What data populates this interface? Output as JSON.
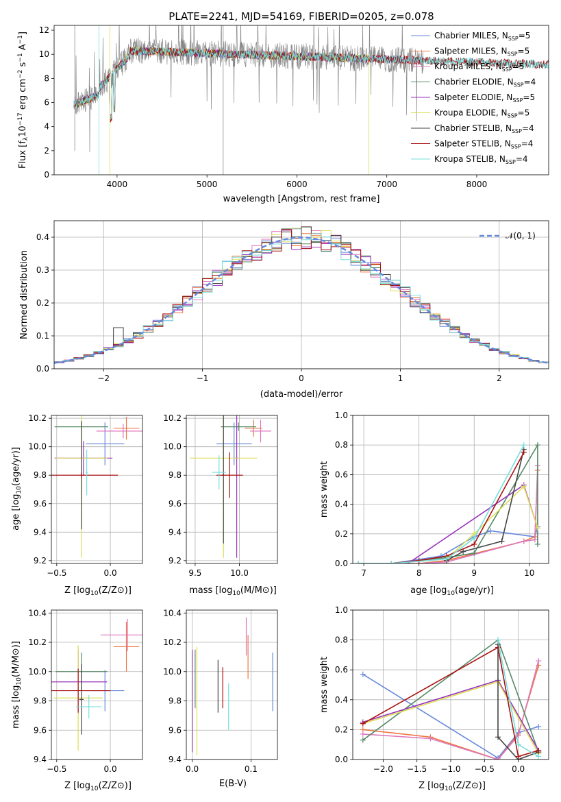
{
  "colors": [
    "#6688dd",
    "#ee7744",
    "#dd77bb",
    "#558866",
    "#9933bb",
    "#dddd55",
    "#444444",
    "#aa1111",
    "#77dddd",
    "#888888"
  ],
  "chart_data": [
    {
      "id": "spectrum",
      "type": "line",
      "title": "PLATE=2241, MJD=54169, FIBERID=0205, z=0.078",
      "xlabel": "wavelength [Angstrom, rest frame]",
      "ylabel": "Flux [fλ10⁻¹⁷ erg cm⁻² s⁻¹ A⁻¹]",
      "xlim": [
        3300,
        8800
      ],
      "ylim": [
        0,
        12.4
      ],
      "xticks": [
        4000,
        5000,
        6000,
        7000,
        8000
      ],
      "yticks": [
        0,
        2,
        4,
        6,
        8,
        10,
        12
      ],
      "grid": false,
      "legend_position": "right",
      "data_line": {
        "name": "data",
        "color": "#888888"
      },
      "series": [
        {
          "name": "Chabrier MILES, N_SSP=5",
          "label_main": "Chabrier MILES, N",
          "label_sub": "SSP",
          "label_end": "=5",
          "color": "#6688dd",
          "x_end": 7400
        },
        {
          "name": "Salpeter MILES, N_SSP=5",
          "label_main": "Salpeter MILES, N",
          "label_sub": "SSP",
          "label_end": "=5",
          "color": "#ee7744",
          "x_end": 7400
        },
        {
          "name": "Kroupa MILES, N_SSP=5",
          "label_main": "Kroupa MILES, N",
          "label_sub": "SSP",
          "label_end": "=5",
          "color": "#dd77bb",
          "x_end": 7400
        },
        {
          "name": "Chabrier ELODIE, N_SSP=4",
          "label_main": "Chabrier ELODIE, N",
          "label_sub": "SSP",
          "label_end": "=4",
          "color": "#558866",
          "x_end": 6800
        },
        {
          "name": "Salpeter ELODIE, N_SSP=5",
          "label_main": "Salpeter ELODIE, N",
          "label_sub": "SSP",
          "label_end": "=5",
          "color": "#9933bb",
          "x_end": 6800
        },
        {
          "name": "Kroupa ELODIE, N_SSP=5",
          "label_main": "Kroupa ELODIE, N",
          "label_sub": "SSP",
          "label_end": "=5",
          "color": "#dddd55",
          "x_end": 6800
        },
        {
          "name": "Chabrier STELIB, N_SSP=4",
          "label_main": "Chabrier STELIB, N",
          "label_sub": "SSP",
          "label_end": "=4",
          "color": "#444444",
          "x_end": 8800
        },
        {
          "name": "Salpeter STELIB, N_SSP=4",
          "label_main": "Salpeter STELIB, N",
          "label_sub": "SSP",
          "label_end": "=4",
          "color": "#aa1111",
          "x_end": 8800
        },
        {
          "name": "Kroupa STELIB, N_SSP=4",
          "label_main": "Kroupa STELIB, N",
          "label_sub": "SSP",
          "label_end": "=4",
          "color": "#77dddd",
          "x_end": 8800
        }
      ]
    },
    {
      "id": "residuals",
      "type": "line",
      "xlabel": "(data-model)/error",
      "ylabel": "Normed distribution",
      "xlim": [
        -2.5,
        2.5
      ],
      "ylim": [
        0,
        0.45
      ],
      "xticks": [
        -2,
        -1,
        0,
        1,
        2
      ],
      "yticks": [
        0.0,
        0.1,
        0.2,
        0.3,
        0.4
      ],
      "grid": true,
      "legend_position": "top-right",
      "legend_label": "𝒩(0, 1)",
      "gaussian": {
        "mean": 0,
        "sigma": 1,
        "color": "#6688dd",
        "style": "dashed"
      },
      "bin_width": 0.1
    },
    {
      "id": "age-vs-Z",
      "type": "scatter",
      "xlabel_main": "Z [log",
      "xlabel_sub": "10",
      "xlabel_end": "(Z/Z⊙)]",
      "ylabel_main": "age  [log",
      "ylabel_sub": "10",
      "ylabel_end": "(age/yr)]",
      "xlim": [
        -0.55,
        0.3
      ],
      "ylim": [
        9.18,
        10.22
      ],
      "xticks": [
        -0.5,
        0.0
      ],
      "yticks": [
        9.2,
        9.4,
        9.6,
        9.8,
        10.0,
        10.2
      ],
      "grid": true,
      "points": [
        {
          "x": -0.05,
          "y": 10.02,
          "xerr": 0.18,
          "yerr": 0.15
        },
        {
          "x": 0.15,
          "y": 10.13,
          "xerr": 0.12,
          "yerr": 0.08
        },
        {
          "x": 0.12,
          "y": 10.11,
          "xerr": 0.25,
          "yerr": 0.05
        },
        {
          "x": -0.27,
          "y": 10.14,
          "xerr": 0.25,
          "yerr": 0.02
        },
        {
          "x": -0.25,
          "y": 9.92,
          "xerr": 0.27,
          "yerr": 0.12
        },
        {
          "x": -0.27,
          "y": 9.92,
          "xerr": 0.24,
          "yerr": 0.7
        },
        {
          "x": -0.27,
          "y": 9.8,
          "xerr": 0.02,
          "yerr": 0.38
        },
        {
          "x": -0.27,
          "y": 9.8,
          "xerr": 0.34,
          "yerr": 0.02
        },
        {
          "x": -0.22,
          "y": 9.82,
          "xerr": 0.01,
          "yerr": 0.16
        }
      ]
    },
    {
      "id": "age-vs-mass",
      "type": "scatter",
      "xlabel_main": "mass [log",
      "xlabel_sub": "10",
      "xlabel_end": "(M/M⊙)]",
      "xlim": [
        9.4,
        10.43
      ],
      "ylim": [
        9.18,
        10.22
      ],
      "xticks": [
        9.5,
        10.0
      ],
      "yticks": [
        9.2,
        9.4,
        9.6,
        9.8,
        10.0,
        10.2
      ],
      "grid": true,
      "points": [
        {
          "x": 9.94,
          "y": 10.02,
          "xerr": 0.2,
          "yerr": 0.15
        },
        {
          "x": 10.16,
          "y": 10.13,
          "xerr": 0.1,
          "yerr": 0.06
        },
        {
          "x": 10.24,
          "y": 10.11,
          "xerr": 0.12,
          "yerr": 0.08
        },
        {
          "x": 9.99,
          "y": 10.14,
          "xerr": 0.2,
          "yerr": 0.03
        },
        {
          "x": 9.97,
          "y": 9.92,
          "xerr": 0.02,
          "yerr": 0.7
        },
        {
          "x": 9.82,
          "y": 9.92,
          "xerr": 0.38,
          "yerr": 0.7
        },
        {
          "x": 9.82,
          "y": 9.8,
          "xerr": 0.02,
          "yerr": 0.48
        },
        {
          "x": 9.89,
          "y": 9.8,
          "xerr": 0.15,
          "yerr": 0.16
        },
        {
          "x": 9.77,
          "y": 9.82,
          "xerr": 0.08,
          "yerr": 0.12
        }
      ]
    },
    {
      "id": "massweight-vs-age",
      "type": "line",
      "xlabel_main": "age  [log",
      "xlabel_sub": "10",
      "xlabel_end": "(age/yr)]",
      "ylabel": "mass weight",
      "xlim": [
        6.8,
        10.35
      ],
      "ylim": [
        0,
        1.0
      ],
      "xticks": [
        7,
        8,
        9,
        10
      ],
      "yticks": [
        0.0,
        0.2,
        0.4,
        0.6,
        0.8,
        1.0
      ],
      "grid": true,
      "series": [
        {
          "x": [
            6.9,
            7.5,
            8.4,
            9.0,
            9.3,
            10.1,
            10.15
          ],
          "y": [
            0.0,
            0.0,
            0.05,
            0.18,
            0.22,
            0.18,
            0.25
          ]
        },
        {
          "x": [
            7.5,
            8.0,
            8.5,
            9.9,
            10.1,
            10.15
          ],
          "y": [
            0.0,
            0.0,
            0.02,
            0.15,
            0.18,
            0.63
          ]
        },
        {
          "x": [
            7.5,
            8.0,
            8.5,
            9.9,
            10.1,
            10.15
          ],
          "y": [
            0.0,
            0.0,
            0.01,
            0.15,
            0.16,
            0.66
          ]
        },
        {
          "x": [
            6.9,
            7.5,
            8.5,
            9.0,
            10.15,
            10.15
          ],
          "y": [
            0.0,
            0.0,
            0.04,
            0.07,
            0.8,
            0.13
          ]
        },
        {
          "x": [
            7.8,
            9.9,
            10.15
          ],
          "y": [
            0.0,
            0.53,
            0.24
          ]
        },
        {
          "x": [
            7.5,
            8.5,
            9.0,
            9.9,
            10.15
          ],
          "y": [
            0.0,
            0.03,
            0.2,
            0.52,
            0.24
          ]
        },
        {
          "x": [
            8.5,
            8.8,
            9.5,
            9.9
          ],
          "y": [
            0.02,
            0.08,
            0.15,
            0.77
          ]
        },
        {
          "x": [
            7.5,
            8.0,
            8.5,
            9.0,
            9.9
          ],
          "y": [
            0.0,
            0.02,
            0.05,
            0.13,
            0.75
          ]
        },
        {
          "x": [
            6.9,
            7.5,
            8.5,
            9.0,
            9.9
          ],
          "y": [
            0.0,
            0.0,
            0.03,
            0.17,
            0.8
          ]
        }
      ]
    },
    {
      "id": "mass-vs-Z",
      "type": "scatter",
      "xlabel_main": "Z [log",
      "xlabel_sub": "10",
      "xlabel_end": "(Z/Z⊙)]",
      "ylabel_main": "mass [log",
      "ylabel_sub": "10",
      "ylabel_end": "(M/M⊙)]",
      "xlim": [
        -0.55,
        0.3
      ],
      "ylim": [
        9.4,
        10.42
      ],
      "xticks": [
        -0.5,
        0.0
      ],
      "yticks": [
        9.4,
        9.6,
        9.8,
        10.0,
        10.2,
        10.4
      ],
      "grid": true,
      "points": [
        {
          "x": -0.05,
          "y": 9.87,
          "xerr": 0.18,
          "yerr": 0.14
        },
        {
          "x": 0.15,
          "y": 10.17,
          "xerr": 0.12,
          "yerr": 0.17
        },
        {
          "x": 0.16,
          "y": 10.25,
          "xerr": 0.25,
          "yerr": 0.11
        },
        {
          "x": -0.27,
          "y": 10.0,
          "xerr": 0.24,
          "yerr": 0.13
        },
        {
          "x": -0.3,
          "y": 9.93,
          "xerr": 0.27,
          "yerr": 0.22
        },
        {
          "x": -0.3,
          "y": 9.82,
          "xerr": 0.23,
          "yerr": 0.36
        },
        {
          "x": -0.27,
          "y": 9.81,
          "xerr": 0.02,
          "yerr": 0.24
        },
        {
          "x": -0.3,
          "y": 9.87,
          "xerr": 0.3,
          "yerr": 0.15
        },
        {
          "x": -0.2,
          "y": 9.76,
          "xerr": 0.12,
          "yerr": 0.08
        }
      ]
    },
    {
      "id": "mass-vs-ebv",
      "type": "scatter",
      "xlabel": "E(B-V)",
      "xlim": [
        -0.01,
        0.145
      ],
      "ylim": [
        9.4,
        10.42
      ],
      "xticks": [
        0.0,
        0.1
      ],
      "yticks": [
        9.4,
        9.6,
        9.8,
        10.0,
        10.2,
        10.4
      ],
      "grid": true,
      "points": [
        {
          "x": 0.137,
          "y": 9.93,
          "yerr": 0.2
        },
        {
          "x": 0.095,
          "y": 10.1,
          "yerr": 0.15
        },
        {
          "x": 0.092,
          "y": 10.24,
          "yerr": 0.13
        },
        {
          "x": 0.005,
          "y": 9.95,
          "yerr": 0.2
        },
        {
          "x": 0.0,
          "y": 9.8,
          "yerr": 0.35
        },
        {
          "x": 0.008,
          "y": 9.8,
          "yerr": 0.37
        },
        {
          "x": 0.044,
          "y": 9.9,
          "yerr": 0.18
        },
        {
          "x": 0.052,
          "y": 9.89,
          "yerr": 0.14
        },
        {
          "x": 0.062,
          "y": 9.76,
          "yerr": 0.16
        }
      ]
    },
    {
      "id": "massweight-vs-Z",
      "type": "line",
      "xlabel_main": "Z [log",
      "xlabel_sub": "10",
      "xlabel_end": "(Z/Z⊙)]",
      "ylabel": "mass weight",
      "xlim": [
        -2.45,
        0.45
      ],
      "ylim": [
        0,
        1.0
      ],
      "xticks": [
        -2.0,
        -1.5,
        -1.0,
        -0.5,
        0.0
      ],
      "yticks": [
        0.0,
        0.2,
        0.4,
        0.6,
        0.8,
        1.0
      ],
      "grid": true,
      "series": [
        {
          "x": [
            -2.3,
            -0.3,
            0.0,
            0.3
          ],
          "y": [
            0.57,
            0.01,
            0.18,
            0.22
          ]
        },
        {
          "x": [
            -2.3,
            -1.3,
            -0.3,
            0.0,
            0.3
          ],
          "y": [
            0.2,
            0.15,
            0.0,
            0.17,
            0.63
          ]
        },
        {
          "x": [
            -2.3,
            -1.3,
            -0.3,
            0.0,
            0.3
          ],
          "y": [
            0.17,
            0.14,
            0.0,
            0.16,
            0.66
          ]
        },
        {
          "x": [
            -2.3,
            -0.3,
            0.3
          ],
          "y": [
            0.13,
            0.8,
            0.05
          ]
        },
        {
          "x": [
            -2.3,
            -0.3,
            0.3
          ],
          "y": [
            0.25,
            0.53,
            0.06
          ]
        },
        {
          "x": [
            -2.3,
            -0.3,
            0.3
          ],
          "y": [
            0.24,
            0.52,
            0.04
          ]
        },
        {
          "x": [
            -0.3,
            -0.3,
            0.0,
            0.3
          ],
          "y": [
            0.77,
            0.15,
            0.0,
            0.05
          ]
        },
        {
          "x": [
            -2.3,
            -0.3,
            0.0,
            0.3
          ],
          "y": [
            0.24,
            0.75,
            0.02,
            0.06
          ]
        },
        {
          "x": [
            -0.3,
            0.0,
            0.3
          ],
          "y": [
            0.8,
            0.1,
            0.02
          ]
        }
      ]
    }
  ]
}
